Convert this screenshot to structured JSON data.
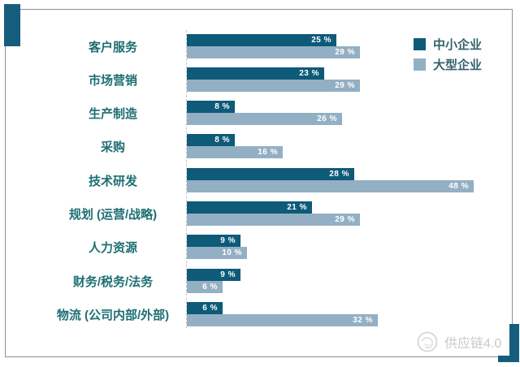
{
  "frame": {
    "accent_color": "#155d7c",
    "border_color": "#8f8f8f"
  },
  "watermark": {
    "text": "供应链4.0"
  },
  "chart_data": {
    "type": "bar",
    "orientation": "horizontal",
    "title": "",
    "xlabel": "",
    "ylabel": "",
    "unit": "%",
    "xlim": [
      0,
      50
    ],
    "grid": false,
    "legend_position": "top-right",
    "categories": [
      "客户服务",
      "市场营销",
      "生产制造",
      "采购",
      "技术研发",
      "规划 (运营/战略)",
      "人力资源",
      "财务/税务/法务",
      "物流 (公司内部/外部)"
    ],
    "series": [
      {
        "name": "中小企业",
        "color": "#0e5a79",
        "values": [
          25,
          23,
          8,
          8,
          28,
          21,
          9,
          9,
          6
        ],
        "labels": [
          "25 %",
          "23 %",
          "8 %",
          "8 %",
          "28 %",
          "21 %",
          "9 %",
          "9 %",
          "6 %"
        ]
      },
      {
        "name": "大型企业",
        "color": "#93afc4",
        "values": [
          29,
          29,
          26,
          16,
          48,
          29,
          10,
          6,
          32
        ],
        "labels": [
          "29 %",
          "29 %",
          "26 %",
          "16 %",
          "48 %",
          "29 %",
          "10 %",
          "6 %",
          "32 %"
        ]
      }
    ]
  }
}
